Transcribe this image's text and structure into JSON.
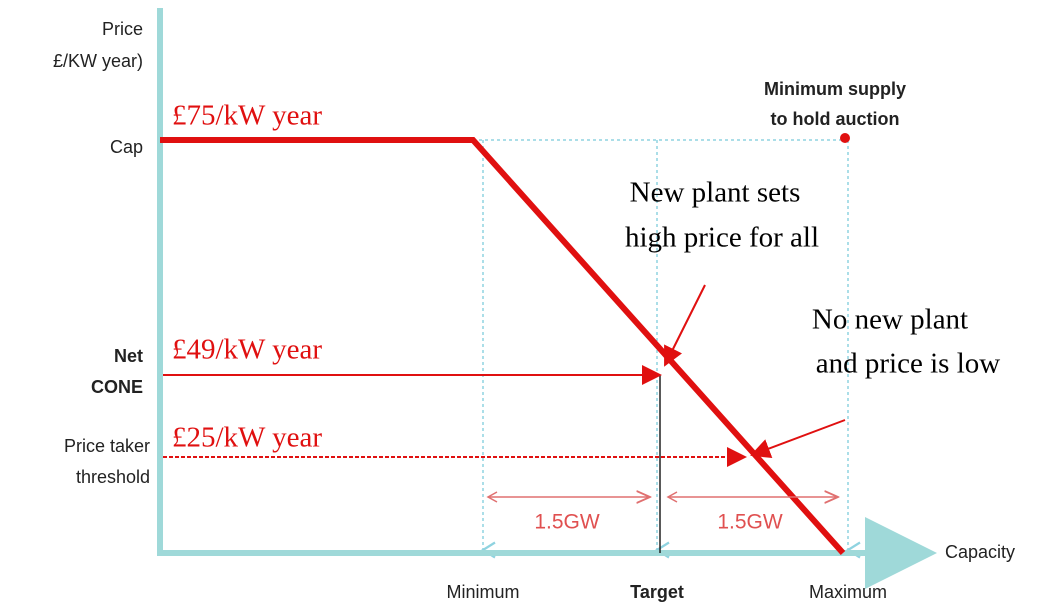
{
  "y_axis": {
    "label_lines": [
      "Price",
      "£/KW year)"
    ],
    "levels": [
      {
        "lines": [
          "Cap"
        ],
        "price": "£75/kW year"
      },
      {
        "lines": [
          "Net",
          "CONE"
        ],
        "price": "£49/kW year"
      },
      {
        "lines": [
          "Price taker",
          "threshold"
        ],
        "price": "£25/kW year"
      }
    ]
  },
  "x_axis": {
    "label": "Capacity",
    "points": [
      "Minimum",
      "Target",
      "Maximum"
    ]
  },
  "annotations": {
    "minimum_supply": [
      "Minimum supply",
      "to hold auction"
    ],
    "new_plant": [
      "New plant sets",
      "high price for all"
    ],
    "no_new_plant": [
      "No new plant",
      "and price is low"
    ],
    "gap_left": "1.5GW",
    "gap_right": "1.5GW"
  }
}
